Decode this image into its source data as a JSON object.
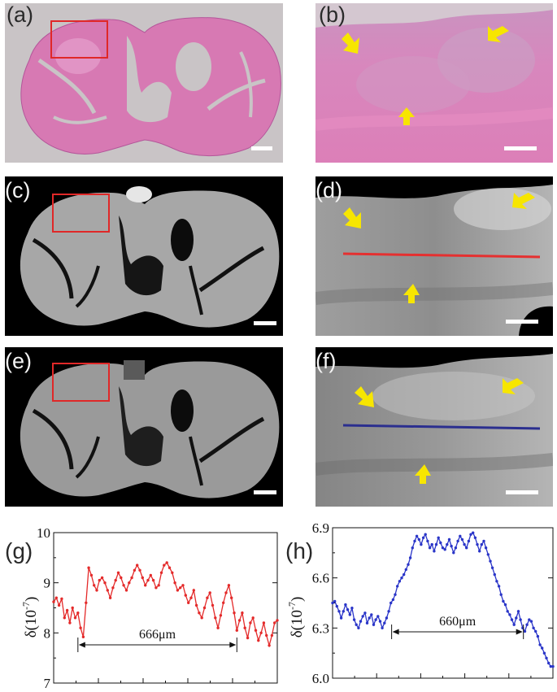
{
  "figure": {
    "panels": [
      {
        "id": "a",
        "label": "(a)",
        "type": "histology-overview"
      },
      {
        "id": "b",
        "label": "(b)",
        "type": "histology-zoom"
      },
      {
        "id": "c",
        "label": "(c)",
        "type": "xray-overview"
      },
      {
        "id": "d",
        "label": "(d)",
        "type": "xray-zoom",
        "profile_line_color": "#e53030"
      },
      {
        "id": "e",
        "label": "(e)",
        "type": "xray-overview"
      },
      {
        "id": "f",
        "label": "(f)",
        "type": "xray-zoom",
        "profile_line_color": "#2b2f8f"
      }
    ],
    "colors": {
      "histology_bg": "#c9c4c6",
      "tissue_pink": "#d779b3",
      "roi_box": "#e02828",
      "arrow": "#f7e600",
      "scale_bar": "#ffffff",
      "plot_g": "#e42a2a",
      "plot_h": "#2a35c8"
    }
  },
  "chart_data": [
    {
      "type": "line",
      "panel_label": "(g)",
      "ylabel": "δ(10",
      "ylabel_exp": "-7",
      "ylim": [
        7,
        10
      ],
      "yticks": [
        "7",
        "8",
        "9",
        "10"
      ],
      "annotation": "666μm",
      "annotation_range": [
        27,
        204
      ],
      "x": [
        0,
        3,
        6,
        9,
        12,
        15,
        18,
        21,
        24,
        27,
        30,
        33,
        36,
        39,
        42,
        45,
        48,
        51,
        54,
        57,
        60,
        63,
        66,
        69,
        72,
        75,
        78,
        81,
        84,
        87,
        90,
        93,
        96,
        99,
        102,
        105,
        108,
        111,
        114,
        117,
        120,
        123,
        126,
        129,
        132,
        135,
        138,
        141,
        144,
        147,
        150,
        153,
        156,
        159,
        162,
        165,
        168,
        171,
        174,
        177,
        180,
        183,
        186,
        189,
        192,
        195,
        198,
        201,
        204,
        207,
        210,
        213,
        216,
        219,
        222,
        225,
        228,
        231,
        234,
        237,
        240,
        243,
        246,
        249
      ],
      "y": [
        8.62,
        8.7,
        8.55,
        8.68,
        8.3,
        8.45,
        8.2,
        8.5,
        8.3,
        8.4,
        8.1,
        7.92,
        8.6,
        9.3,
        9.15,
        8.95,
        8.85,
        9.05,
        9.1,
        9.0,
        8.85,
        8.7,
        8.9,
        9.05,
        9.2,
        9.1,
        8.95,
        8.85,
        9.0,
        9.1,
        9.25,
        9.35,
        9.25,
        9.1,
        8.95,
        9.05,
        9.15,
        9.05,
        8.9,
        8.95,
        9.2,
        9.35,
        9.4,
        9.3,
        9.2,
        9.0,
        8.85,
        8.9,
        8.95,
        8.75,
        8.6,
        8.7,
        8.85,
        8.55,
        8.4,
        8.3,
        8.5,
        8.7,
        8.8,
        8.55,
        8.3,
        8.1,
        8.35,
        8.6,
        8.8,
        8.95,
        8.7,
        8.4,
        8.05,
        8.25,
        8.4,
        8.1,
        7.9,
        8.2,
        8.3,
        8.05,
        7.85,
        8.0,
        8.2,
        7.95,
        7.75,
        7.95,
        8.2,
        8.25
      ]
    },
    {
      "type": "line",
      "panel_label": "(h)",
      "ylabel": "δ(10",
      "ylabel_exp": "-7",
      "ylim": [
        6.0,
        6.9
      ],
      "yticks": [
        "6.0",
        "6.3",
        "6.6",
        "6.9"
      ],
      "annotation": "660μm",
      "annotation_range": [
        82,
        265
      ],
      "x": [
        0,
        3,
        6,
        9,
        12,
        15,
        18,
        21,
        24,
        27,
        30,
        33,
        36,
        39,
        42,
        45,
        48,
        51,
        54,
        57,
        60,
        63,
        66,
        69,
        72,
        75,
        78,
        81,
        84,
        87,
        90,
        93,
        96,
        99,
        102,
        105,
        108,
        111,
        114,
        117,
        120,
        123,
        126,
        129,
        132,
        135,
        138,
        141,
        144,
        147,
        150,
        153,
        156,
        159,
        162,
        165,
        168,
        171,
        174,
        177,
        180,
        183,
        186,
        189,
        192,
        195,
        198,
        201,
        204,
        207,
        210,
        213,
        216,
        219,
        222,
        225,
        228,
        231,
        234,
        237,
        240,
        243,
        246,
        249,
        252,
        255,
        258,
        261,
        264,
        267,
        270,
        273,
        276,
        279,
        282,
        285,
        288,
        291,
        294,
        297,
        300,
        303,
        306
      ],
      "y": [
        6.45,
        6.46,
        6.43,
        6.4,
        6.36,
        6.4,
        6.44,
        6.41,
        6.38,
        6.42,
        6.35,
        6.32,
        6.3,
        6.34,
        6.37,
        6.39,
        6.33,
        6.36,
        6.38,
        6.32,
        6.35,
        6.37,
        6.34,
        6.3,
        6.33,
        6.36,
        6.4,
        6.45,
        6.47,
        6.5,
        6.55,
        6.58,
        6.6,
        6.62,
        6.65,
        6.68,
        6.72,
        6.78,
        6.82,
        6.85,
        6.83,
        6.8,
        6.84,
        6.86,
        6.82,
        6.78,
        6.8,
        6.76,
        6.8,
        6.84,
        6.81,
        6.78,
        6.77,
        6.8,
        6.83,
        6.79,
        6.75,
        6.78,
        6.82,
        6.85,
        6.83,
        6.8,
        6.78,
        6.82,
        6.86,
        6.87,
        6.84,
        6.8,
        6.76,
        6.8,
        6.82,
        6.78,
        6.74,
        6.7,
        6.66,
        6.62,
        6.58,
        6.55,
        6.5,
        6.46,
        6.44,
        6.4,
        6.38,
        6.35,
        6.32,
        6.36,
        6.4,
        6.35,
        6.3,
        6.28,
        6.32,
        6.35,
        6.34,
        6.3,
        6.28,
        6.25,
        6.2,
        6.18,
        6.15,
        6.12,
        6.09,
        6.07,
        6.07
      ]
    }
  ]
}
